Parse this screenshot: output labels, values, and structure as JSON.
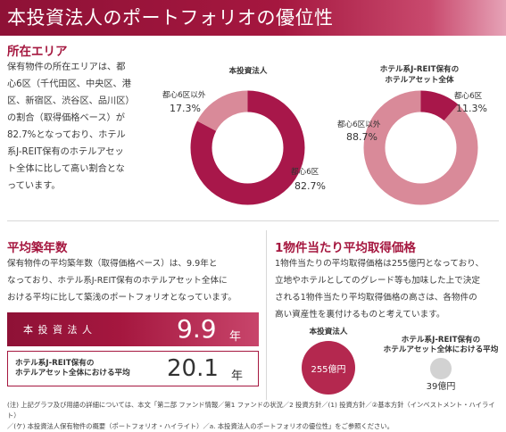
{
  "page": {
    "title": "本投資法人のポートフォリオの優位性"
  },
  "location": {
    "heading": "所在エリア",
    "lines": [
      "保有物件の所在エリアは、都",
      "心6区（千代田区、中央区、港",
      "区、新宿区、渋谷区、品川区）",
      "の割合（取得価格ベース）が",
      "82.7%となっており、ホテル",
      "系J-REIT保有のホテルアセッ",
      "ト全体に比して高い割合とな",
      "っています。"
    ]
  },
  "chart_data": [
    {
      "type": "pie",
      "title": "本投資法人",
      "categories": [
        "都心6区",
        "都心6区以外"
      ],
      "values": [
        82.7,
        17.3
      ],
      "value_labels": [
        "82.7%",
        "17.3%"
      ],
      "colors": [
        "#a8174a",
        "#d98a99"
      ]
    },
    {
      "type": "pie",
      "title_lines": [
        "ホテル系J-REIT保有の",
        "ホテルアセット全体"
      ],
      "categories": [
        "都心6区",
        "都心6区以外"
      ],
      "values": [
        11.3,
        88.7
      ],
      "value_labels": [
        "11.3%",
        "88.7%"
      ],
      "colors": [
        "#a8174a",
        "#d98a99"
      ]
    }
  ],
  "age": {
    "heading": "平均築年数",
    "lines": [
      "保有物件の平均築年数（取得価格ベース）は、9.9年と",
      "なっており、ホテル系J-REIT保有のホテルアセット全体に",
      "おける平均に比して築浅のポートフォリオとなっています。"
    ],
    "main_label": "本 投 資 法 人",
    "main_value": "9.9",
    "main_unit": "年",
    "sub_label_lines": [
      "ホテル系J-REIT保有の",
      "ホテルアセット全体における平均"
    ],
    "sub_value": "20.1",
    "sub_unit": "年"
  },
  "price": {
    "heading": "1物件当たり平均取得価格",
    "lines": [
      "1物件当たりの平均取得価格は255億円となっており、",
      "立地やホテルとしてのグレード等も加味した上で決定",
      "される1物件当たり平均取得価格の高さは、各物件の",
      "高い資産性を裏付けるものと考えています。"
    ],
    "circle1_label": "本投資法人",
    "circle1_value": "255億円",
    "circle1_amount": 255,
    "circle2_label_lines": [
      "ホテル系J-REIT保有の",
      "ホテルアセット全体における平均"
    ],
    "circle2_value": "39億円",
    "circle2_amount": 39
  },
  "notes": [
    "(注) 上記グラフ及び用語の詳細については、本文「第二部 ファンド情報／第1 ファンドの状況／2 投資方針／(1) 投資方針／②基本方針（インベストメント・ハイライト）",
    "／(ケ) 本投資法人保有物件の概要（ポートフォリオ・ハイライト）／a. 本投資法人のポートフォリオの優位性」をご参照ください。"
  ]
}
